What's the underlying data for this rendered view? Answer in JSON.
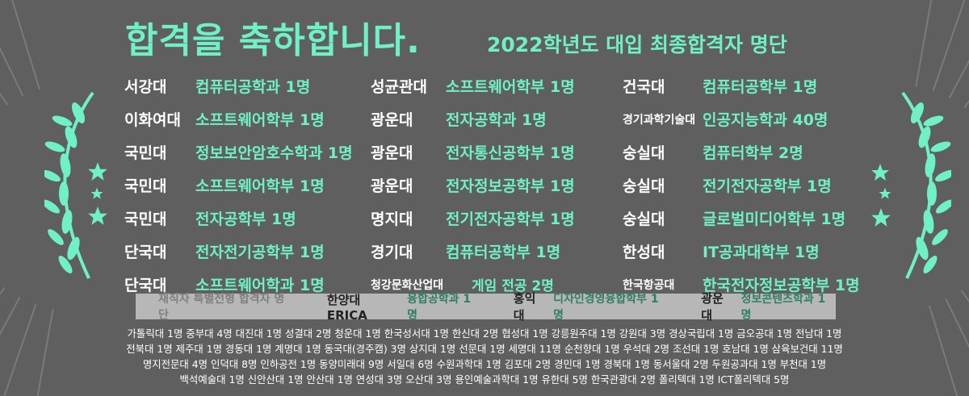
{
  "header": {
    "title": "합격을 축하합니다.",
    "subtitle": "2022학년도 대입 최종합격자 명단"
  },
  "accent_color": "#6ff0c6",
  "rows": [
    [
      [
        "서강대",
        "컴퓨터공학과 1명"
      ],
      [
        "성균관대",
        "소프트웨어학부 1명"
      ],
      [
        "건국대",
        "컴퓨터공학부 1명"
      ]
    ],
    [
      [
        "이화여대",
        "소프트웨어학부 1명"
      ],
      [
        "광운대",
        "전자공학과 1명"
      ],
      [
        "경기과학기술대",
        "인공지능학과 40명"
      ]
    ],
    [
      [
        "국민대",
        "정보보안암호수학과 1명"
      ],
      [
        "광운대",
        "전자통신공학부 1명"
      ],
      [
        "숭실대",
        "컴퓨터학부 2명"
      ]
    ],
    [
      [
        "국민대",
        "소프트웨어학부 1명"
      ],
      [
        "광운대",
        "전자정보공학부 1명"
      ],
      [
        "숭실대",
        "전기전자공학부 1명"
      ]
    ],
    [
      [
        "국민대",
        "전자공학부 1명"
      ],
      [
        "명지대",
        "전기전자공학부 1명"
      ],
      [
        "숭실대",
        "글로벌미디어학부 1명"
      ]
    ],
    [
      [
        "단국대",
        "전자전기공학부 1명"
      ],
      [
        "경기대",
        "컴퓨터공학부 1명"
      ],
      [
        "한성대",
        "IT공과대학부 1명"
      ]
    ],
    [
      [
        "단국대",
        "소프트웨어학과 1명"
      ],
      [
        "청강문화산업대",
        "게임 전공 2명"
      ],
      [
        "한국항공대",
        "한국전자정보공학부 1명"
      ]
    ]
  ],
  "special": {
    "label": "재직자 특별전형 합격자 명단",
    "entries": [
      {
        "univ": "한양대ERICA",
        "dept": "융합공학과 1명"
      },
      {
        "univ": "홍익대",
        "dept": "디자인경영융합학부 1명"
      },
      {
        "univ": "광운대",
        "dept": "정보콘텐츠학과 1명"
      }
    ]
  },
  "others": [
    "가톨릭대 1명  중부대 4명  대진대 1명  성결대 2명  청운대 1명  한국성서대 1명  한신대 2명  협성대 1명  강릉원주대 1명  강원대 3명  경상국립대 1명  금오공대 1명  전남대 1명",
    "전북대 1명  제주대 1명  경동대 1명  계명대 1명  동국대(경주캠) 3명  상지대 1명  선문대 1명  세명대 11명  순천향대 1명  우석대 2명  조선대 1명  호남대 1명  삼육보건대 11명",
    "명지전문대 4명  인덕대 8명  인하공전 1명  동양미래대 9명  서일대 6명  수원과학대 1명  김포대 2명  경민대 1명  경북대 1명  동서울대 2명  두원공과대 1명  부천대 1명",
    "백석예술대 1명  신안산대 1명  안산대 1명  연성대 3명  오산대 3명  용인예술과학대 1명  유한대 5명  한국관광대 2명  폴리텍대 1명  ICT폴리텍대 5명"
  ]
}
